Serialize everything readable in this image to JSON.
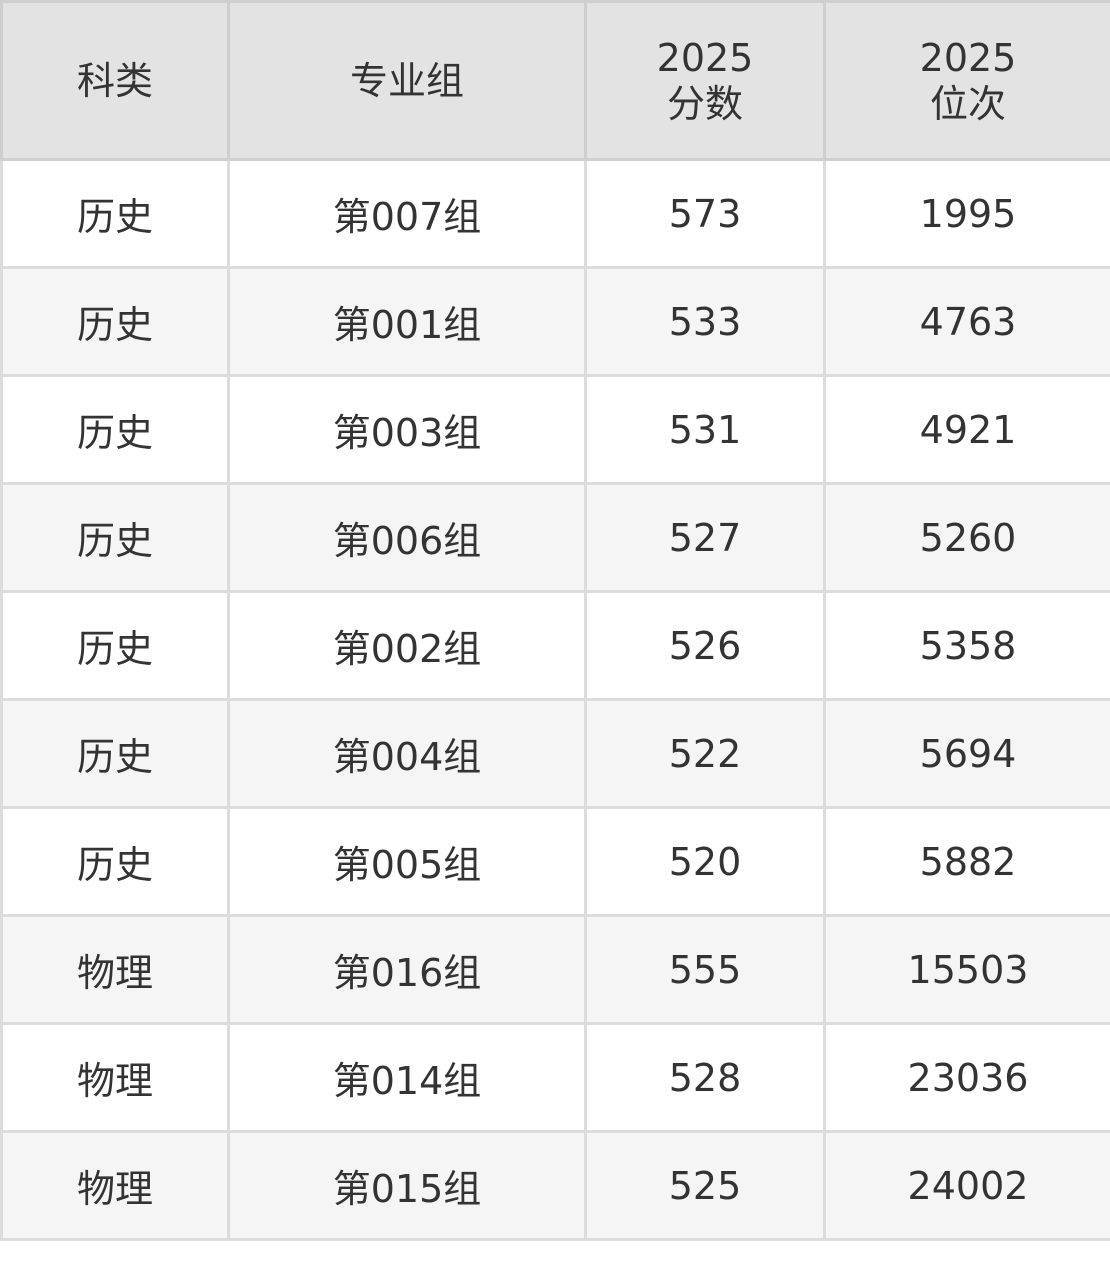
{
  "headers": {
    "subject": "科类",
    "group": "专业组",
    "score_year": "2025",
    "score": "分数",
    "rank_year": "2025",
    "rank": "位次"
  },
  "rows": [
    {
      "subject": "历史",
      "group": "第007组",
      "score": "573",
      "rank": "1995"
    },
    {
      "subject": "历史",
      "group": "第001组",
      "score": "533",
      "rank": "4763"
    },
    {
      "subject": "历史",
      "group": "第003组",
      "score": "531",
      "rank": "4921"
    },
    {
      "subject": "历史",
      "group": "第006组",
      "score": "527",
      "rank": "5260"
    },
    {
      "subject": "历史",
      "group": "第002组",
      "score": "526",
      "rank": "5358"
    },
    {
      "subject": "历史",
      "group": "第004组",
      "score": "522",
      "rank": "5694"
    },
    {
      "subject": "历史",
      "group": "第005组",
      "score": "520",
      "rank": "5882"
    },
    {
      "subject": "物理",
      "group": "第016组",
      "score": "555",
      "rank": "15503"
    },
    {
      "subject": "物理",
      "group": "第014组",
      "score": "528",
      "rank": "23036"
    },
    {
      "subject": "物理",
      "group": "第015组",
      "score": "525",
      "rank": "24002"
    }
  ]
}
